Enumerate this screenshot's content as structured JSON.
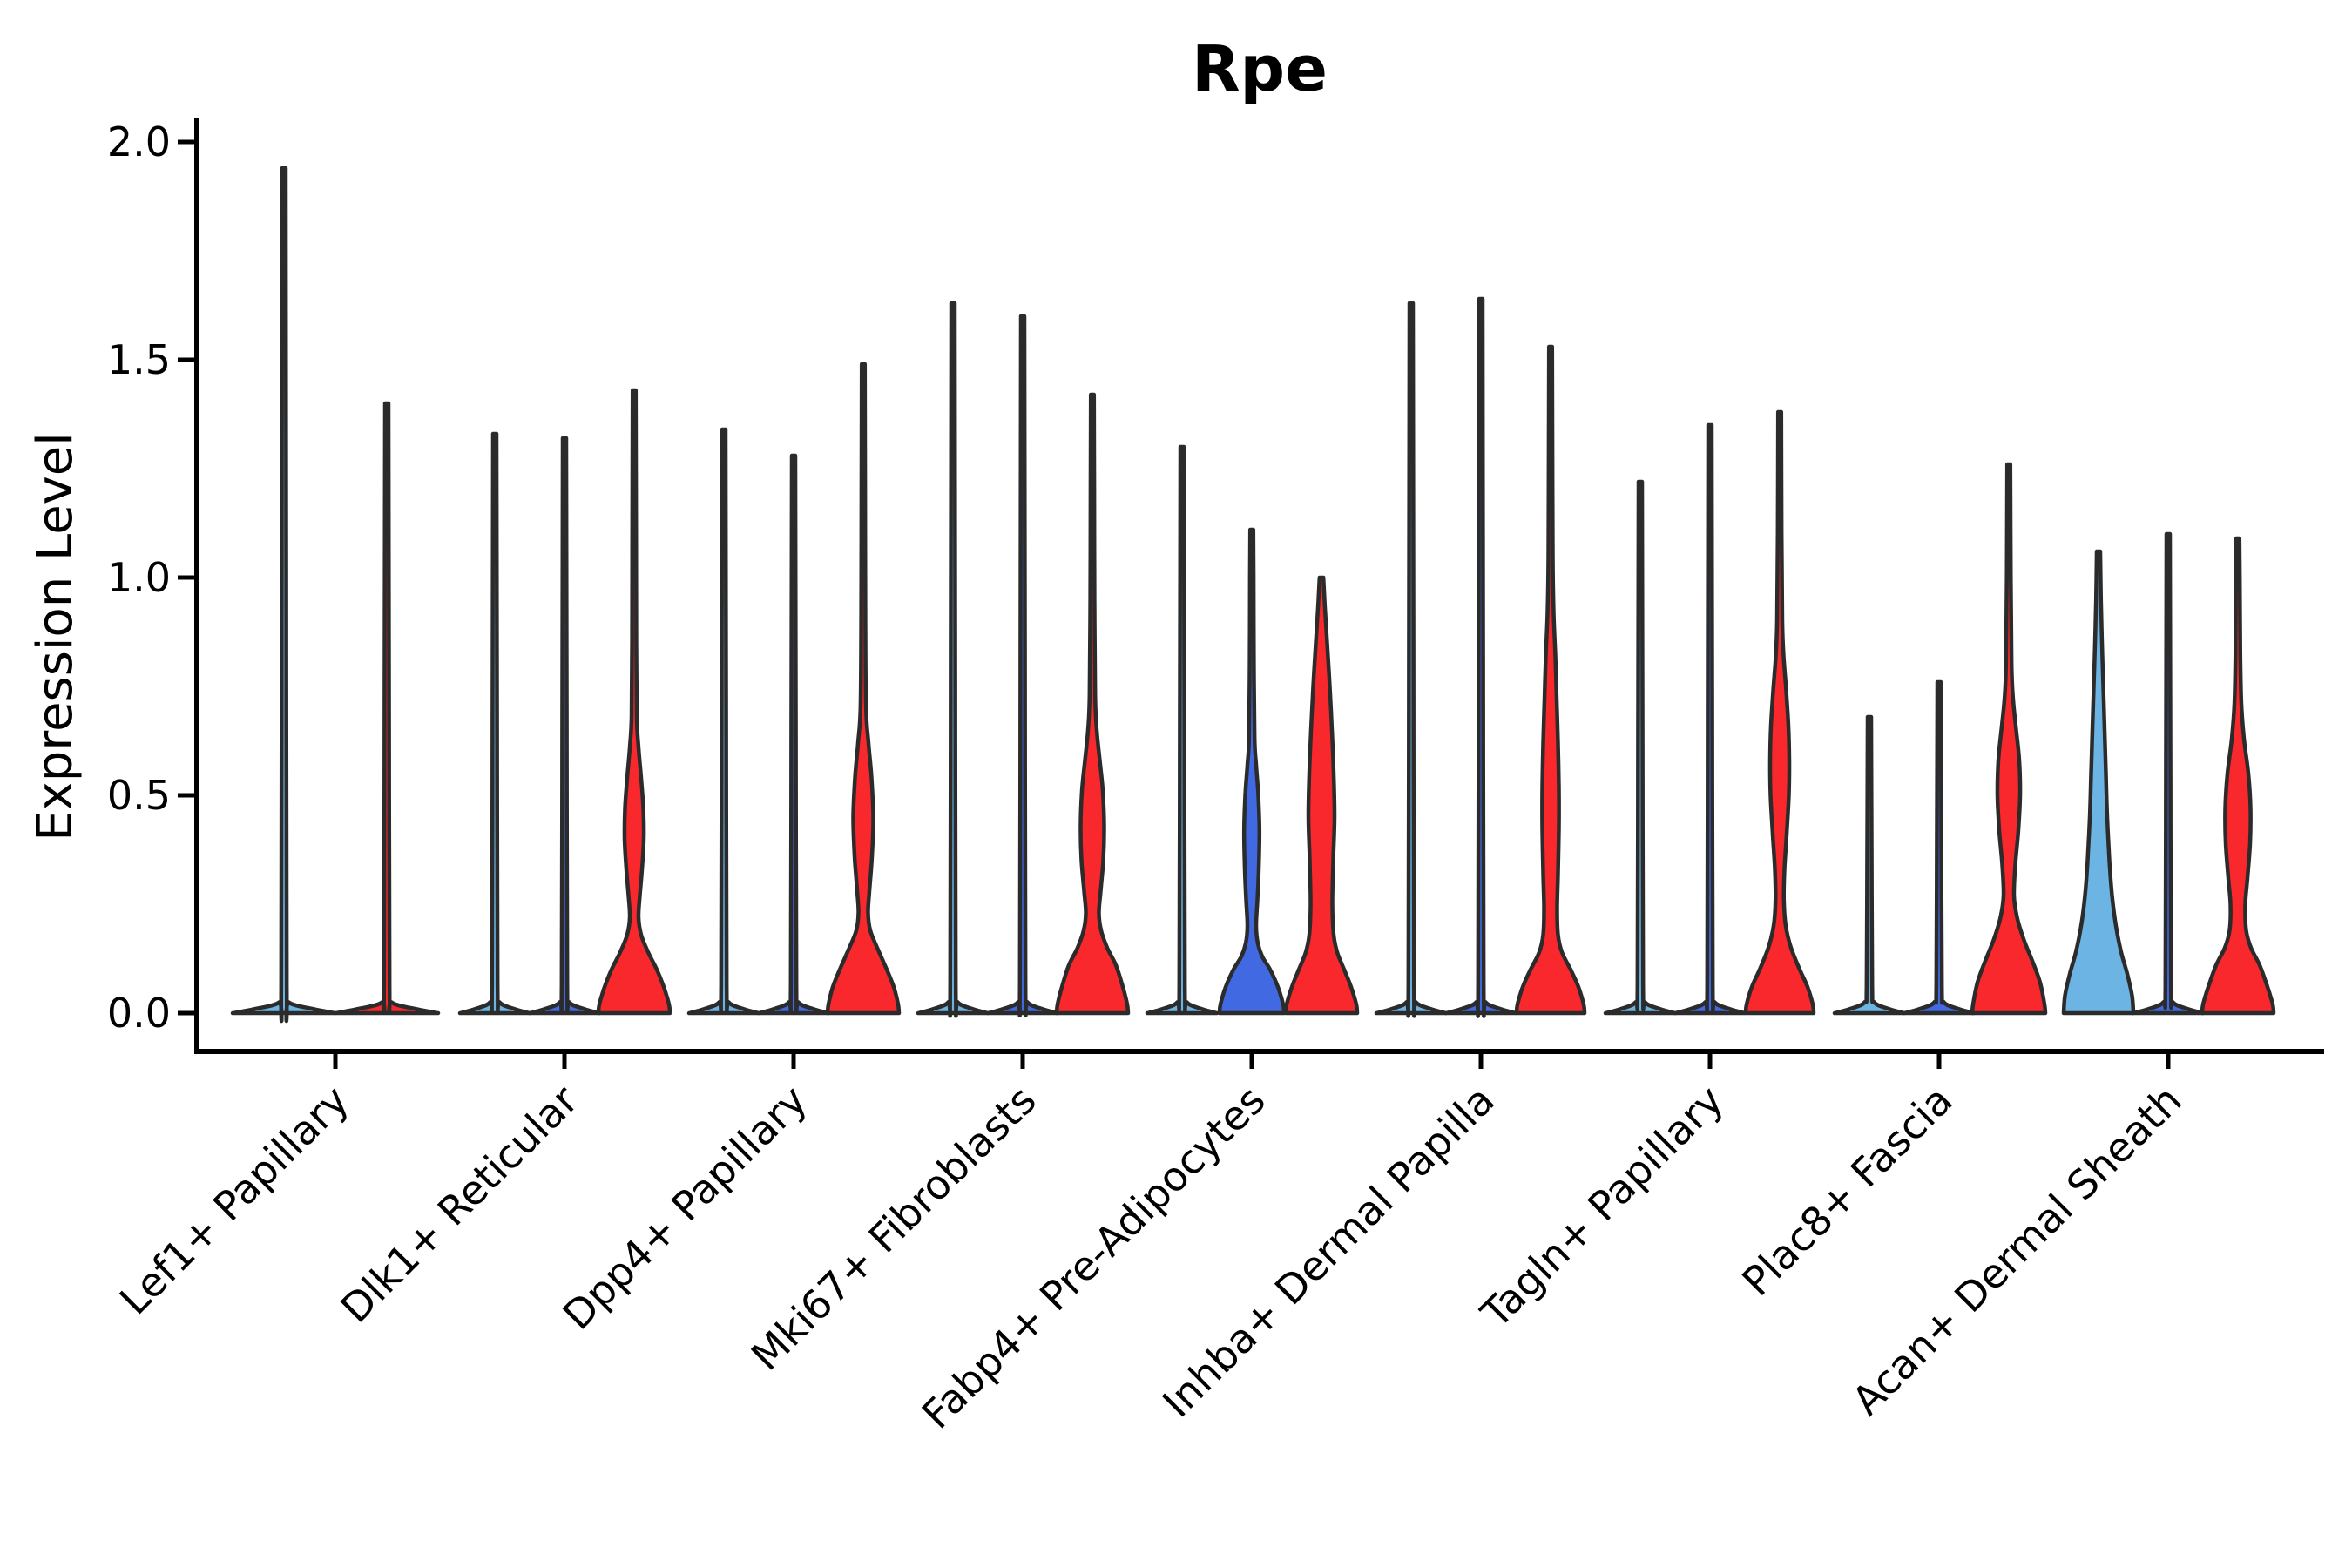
{
  "title": "Rpe",
  "axes": {
    "y_label": "Expression Level",
    "y_tick_labels": [
      "0.0",
      "0.5",
      "1.0",
      "1.5",
      "2.0"
    ],
    "y_tick_values": [
      0.0,
      0.5,
      1.0,
      1.5,
      2.0
    ],
    "y_range": [
      0.0,
      2.05
    ],
    "x_tick_labels": [
      "Lef1+ Papillary",
      "Dlk1+ Reticular",
      "Dpp4+ Papillary",
      "Mki67+ Fibroblasts",
      "Fabp4+ Pre-Adipocytes",
      "Inhba+ Dermal Papilla",
      "Tagln+ Papillary",
      "Plac8+ Fascia",
      "Acan+ Dermal Sheath"
    ]
  },
  "colors": {
    "light_blue_fill": "#6CB4E4",
    "blue_fill": "#4169E1",
    "red_fill": "#F8282C",
    "violin_outline": "#2B2B2B",
    "axis": "#000000",
    "text": "#000000",
    "background": "#FFFFFF"
  },
  "chart_data": {
    "type": "violin",
    "title": "Rpe",
    "xlabel": "",
    "ylabel": "Expression Level",
    "ylim": [
      0.0,
      2.05
    ],
    "grid": false,
    "legend_position": "none",
    "categories": [
      "Lef1+ Papillary",
      "Dlk1+ Reticular",
      "Dpp4+ Papillary",
      "Mki67+ Fibroblasts",
      "Fabp4+ Pre-Adipocytes",
      "Inhba+ Dermal Papilla",
      "Tagln+ Papillary",
      "Plac8+ Fascia",
      "Acan+ Dermal Sheath"
    ],
    "profile_note": "profile = [expression_value, half_width_px] pairs of the kde outline from 0 up to the max expression of that violin",
    "groups": [
      {
        "category": "Lef1+ Papillary",
        "violins": [
          {
            "fill": "#6CB4E4",
            "shape": "line",
            "max": 1.94,
            "base_halfwidth": 59
          },
          {
            "fill": "#F8282C",
            "shape": "line",
            "max": 1.4,
            "base_halfwidth": 59
          }
        ]
      },
      {
        "category": "Dlk1+ Reticular",
        "violins": [
          {
            "fill": "#6CB4E4",
            "shape": "line",
            "max": 1.33,
            "base_halfwidth": 40
          },
          {
            "fill": "#4169E1",
            "shape": "line",
            "max": 1.32,
            "base_halfwidth": 40
          },
          {
            "fill": "#F8282C",
            "shape": "density",
            "max": 1.43,
            "profile": [
              [
                0,
                41
              ],
              [
                0.02,
                40
              ],
              [
                0.06,
                34
              ],
              [
                0.1,
                26
              ],
              [
                0.14,
                16
              ],
              [
                0.18,
                8
              ],
              [
                0.22,
                5
              ],
              [
                0.27,
                6.5
              ],
              [
                0.33,
                9
              ],
              [
                0.4,
                11
              ],
              [
                0.47,
                10.5
              ],
              [
                0.54,
                8
              ],
              [
                0.61,
                5
              ],
              [
                0.68,
                3
              ],
              [
                0.85,
                2.4
              ],
              [
                1.1,
                2.2
              ],
              [
                1.43,
                1.8
              ]
            ]
          }
        ]
      },
      {
        "category": "Dpp4+ Papillary",
        "violins": [
          {
            "fill": "#6CB4E4",
            "shape": "line",
            "max": 1.34,
            "base_halfwidth": 40
          },
          {
            "fill": "#4169E1",
            "shape": "line",
            "max": 1.28,
            "base_halfwidth": 40
          },
          {
            "fill": "#F8282C",
            "shape": "density",
            "max": 1.49,
            "profile": [
              [
                0,
                41
              ],
              [
                0.02,
                40
              ],
              [
                0.06,
                35
              ],
              [
                0.1,
                27
              ],
              [
                0.15,
                16
              ],
              [
                0.19,
                8
              ],
              [
                0.23,
                5.5
              ],
              [
                0.28,
                7
              ],
              [
                0.36,
                10
              ],
              [
                0.45,
                11.5
              ],
              [
                0.54,
                9.5
              ],
              [
                0.62,
                6
              ],
              [
                0.7,
                3.2
              ],
              [
                0.9,
                2.4
              ],
              [
                1.2,
                2.1
              ],
              [
                1.49,
                1.8
              ]
            ]
          }
        ]
      },
      {
        "category": "Mki67+ Fibroblasts",
        "violins": [
          {
            "fill": "#6CB4E4",
            "shape": "line",
            "max": 1.63,
            "base_halfwidth": 40
          },
          {
            "fill": "#4169E1",
            "shape": "line",
            "max": 1.6,
            "base_halfwidth": 40
          },
          {
            "fill": "#F8282C",
            "shape": "density",
            "max": 1.42,
            "profile": [
              [
                0,
                41
              ],
              [
                0.02,
                40
              ],
              [
                0.06,
                35
              ],
              [
                0.11,
                27
              ],
              [
                0.15,
                17
              ],
              [
                0.19,
                10
              ],
              [
                0.23,
                7.5
              ],
              [
                0.28,
                9.5
              ],
              [
                0.35,
                12.5
              ],
              [
                0.43,
                13.5
              ],
              [
                0.51,
                12
              ],
              [
                0.58,
                8.5
              ],
              [
                0.65,
                5
              ],
              [
                0.73,
                3.2
              ],
              [
                0.95,
                2.4
              ],
              [
                1.2,
                2.1
              ],
              [
                1.42,
                1.8
              ]
            ]
          }
        ]
      },
      {
        "category": "Fabp4+ Pre-Adipocytes",
        "violins": [
          {
            "fill": "#6CB4E4",
            "shape": "line",
            "max": 1.3,
            "base_halfwidth": 40
          },
          {
            "fill": "#4169E1",
            "shape": "density",
            "max": 1.11,
            "profile": [
              [
                0,
                37
              ],
              [
                0.02,
                36
              ],
              [
                0.06,
                30
              ],
              [
                0.1,
                21
              ],
              [
                0.13,
                12
              ],
              [
                0.16,
                7
              ],
              [
                0.2,
                5
              ],
              [
                0.26,
                6.5
              ],
              [
                0.33,
                8
              ],
              [
                0.42,
                8.8
              ],
              [
                0.5,
                7.5
              ],
              [
                0.57,
                5
              ],
              [
                0.63,
                3.2
              ],
              [
                0.8,
                2.4
              ],
              [
                1.0,
                2.1
              ],
              [
                1.11,
                1.8
              ]
            ]
          },
          {
            "fill": "#F8282C",
            "shape": "density",
            "max": 1.0,
            "profile": [
              [
                0,
                41
              ],
              [
                0.02,
                40
              ],
              [
                0.06,
                34
              ],
              [
                0.1,
                26
              ],
              [
                0.14,
                18
              ],
              [
                0.18,
                14
              ],
              [
                0.25,
                12.5
              ],
              [
                0.35,
                13.5
              ],
              [
                0.45,
                15
              ],
              [
                0.55,
                14
              ],
              [
                0.65,
                12
              ],
              [
                0.75,
                9.5
              ],
              [
                0.85,
                6.5
              ],
              [
                0.93,
                4
              ],
              [
                1.0,
                2.2
              ]
            ]
          }
        ]
      },
      {
        "category": "Inhba+ Dermal Papilla",
        "violins": [
          {
            "fill": "#6CB4E4",
            "shape": "line",
            "max": 1.63,
            "base_halfwidth": 40
          },
          {
            "fill": "#4169E1",
            "shape": "line",
            "max": 1.64,
            "base_halfwidth": 40
          },
          {
            "fill": "#F8282C",
            "shape": "density",
            "max": 1.53,
            "profile": [
              [
                0,
                39
              ],
              [
                0.02,
                38
              ],
              [
                0.06,
                32
              ],
              [
                0.1,
                23
              ],
              [
                0.14,
                13
              ],
              [
                0.18,
                8.5
              ],
              [
                0.24,
                7.5
              ],
              [
                0.32,
                8.5
              ],
              [
                0.42,
                9.5
              ],
              [
                0.52,
                9.5
              ],
              [
                0.62,
                8.5
              ],
              [
                0.72,
                7
              ],
              [
                0.82,
                5.5
              ],
              [
                0.92,
                3.5
              ],
              [
                1.05,
                2.5
              ],
              [
                1.3,
                2.1
              ],
              [
                1.53,
                1.8
              ]
            ]
          }
        ]
      },
      {
        "category": "Tagln+ Papillary",
        "violins": [
          {
            "fill": "#6CB4E4",
            "shape": "line",
            "max": 1.22,
            "base_halfwidth": 40
          },
          {
            "fill": "#4169E1",
            "shape": "line",
            "max": 1.35,
            "base_halfwidth": 40
          },
          {
            "fill": "#F8282C",
            "shape": "density",
            "max": 1.38,
            "profile": [
              [
                0,
                39
              ],
              [
                0.02,
                38
              ],
              [
                0.06,
                32
              ],
              [
                0.1,
                23
              ],
              [
                0.15,
                13
              ],
              [
                0.2,
                7
              ],
              [
                0.26,
                4.8
              ],
              [
                0.33,
                5.5
              ],
              [
                0.41,
                8
              ],
              [
                0.5,
                10.5
              ],
              [
                0.58,
                11
              ],
              [
                0.66,
                10
              ],
              [
                0.74,
                7.5
              ],
              [
                0.82,
                4.5
              ],
              [
                0.9,
                3
              ],
              [
                1.1,
                2.2
              ],
              [
                1.38,
                1.8
              ]
            ]
          }
        ]
      },
      {
        "category": "Plac8+ Fascia",
        "violins": [
          {
            "fill": "#6CB4E4",
            "shape": "line",
            "max": 0.68,
            "base_halfwidth": 40
          },
          {
            "fill": "#4169E1",
            "shape": "line",
            "max": 0.76,
            "base_halfwidth": 40
          },
          {
            "fill": "#F8282C",
            "shape": "density",
            "max": 1.26,
            "profile": [
              [
                0,
                42
              ],
              [
                0.02,
                41
              ],
              [
                0.07,
                36
              ],
              [
                0.12,
                27
              ],
              [
                0.17,
                17
              ],
              [
                0.22,
                9.5
              ],
              [
                0.27,
                6
              ],
              [
                0.34,
                7.5
              ],
              [
                0.42,
                11
              ],
              [
                0.5,
                13
              ],
              [
                0.58,
                12
              ],
              [
                0.65,
                8.5
              ],
              [
                0.72,
                5
              ],
              [
                0.8,
                3.2
              ],
              [
                1.0,
                2.3
              ],
              [
                1.26,
                1.8
              ]
            ]
          }
        ]
      },
      {
        "category": "Acan+ Dermal Sheath",
        "violins": [
          {
            "fill": "#6CB4E4",
            "shape": "density",
            "max": 1.06,
            "profile": [
              [
                0,
                40
              ],
              [
                0.04,
                38.5
              ],
              [
                0.09,
                33
              ],
              [
                0.14,
                26
              ],
              [
                0.2,
                20
              ],
              [
                0.27,
                15.5
              ],
              [
                0.35,
                12.5
              ],
              [
                0.45,
                10
              ],
              [
                0.55,
                8.5
              ],
              [
                0.65,
                7
              ],
              [
                0.75,
                5.5
              ],
              [
                0.85,
                4
              ],
              [
                0.95,
                2.8
              ],
              [
                1.06,
                2
              ]
            ]
          },
          {
            "fill": "#4169E1",
            "shape": "line",
            "max": 1.1,
            "base_halfwidth": 40
          },
          {
            "fill": "#F8282C",
            "shape": "density",
            "max": 1.09,
            "profile": [
              [
                0,
                41
              ],
              [
                0.02,
                40
              ],
              [
                0.06,
                34
              ],
              [
                0.11,
                25
              ],
              [
                0.15,
                15
              ],
              [
                0.19,
                9.5
              ],
              [
                0.25,
                8.5
              ],
              [
                0.31,
                11
              ],
              [
                0.39,
                14
              ],
              [
                0.47,
                14.5
              ],
              [
                0.55,
                12
              ],
              [
                0.63,
                7
              ],
              [
                0.71,
                4
              ],
              [
                0.82,
                2.8
              ],
              [
                1.0,
                2.2
              ],
              [
                1.09,
                1.8
              ]
            ]
          }
        ]
      }
    ]
  }
}
